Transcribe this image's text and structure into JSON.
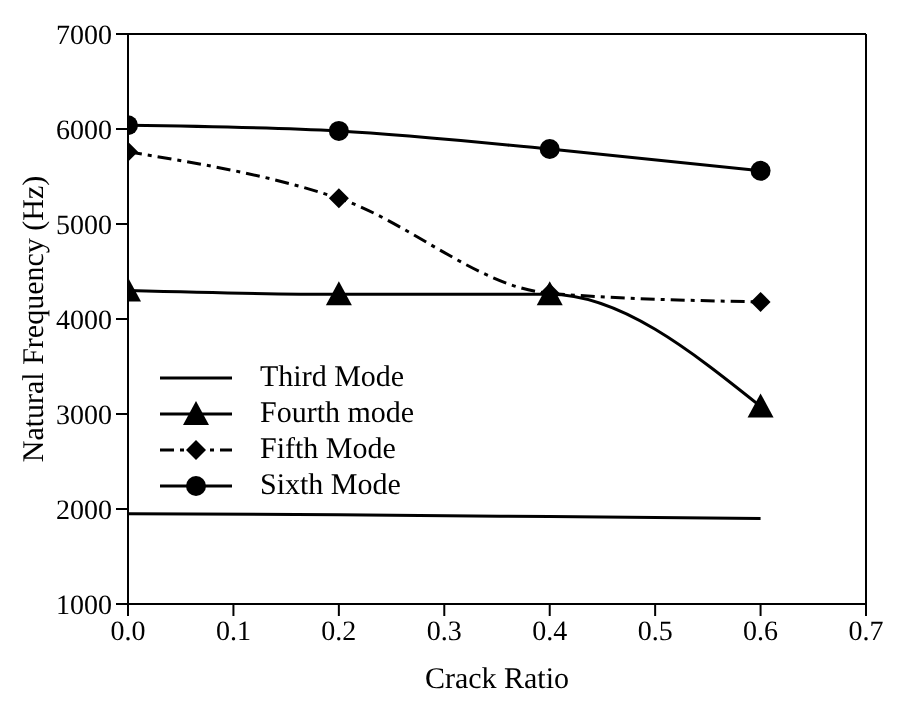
{
  "chart_data": {
    "type": "line",
    "xlabel": "Crack Ratio",
    "ylabel": "Natural Frequency (Hz)",
    "x": [
      0,
      0.2,
      0.4,
      0.6
    ],
    "series": [
      {
        "name": "Third Mode",
        "color": "#000000",
        "values": [
          1950,
          1940,
          1920,
          1900
        ],
        "marker": "none",
        "line_style": "solid"
      },
      {
        "name": "Fourth mode",
        "color": "#000000",
        "values": [
          4300,
          4260,
          4260,
          3080
        ],
        "marker": "triangle",
        "line_style": "solid"
      },
      {
        "name": "Fifth Mode",
        "color": "#000000",
        "values": [
          5760,
          5270,
          4270,
          4180
        ],
        "marker": "diamond",
        "line_style": "dashdot"
      },
      {
        "name": "Sixth Mode",
        "color": "#000000",
        "values": [
          6040,
          5980,
          5790,
          5560
        ],
        "marker": "circle",
        "line_style": "solid"
      }
    ],
    "xlim": [
      0,
      0.7
    ],
    "xticks": [
      {
        "value": 0,
        "label": "0.0"
      },
      {
        "value": 0.1,
        "label": "0.1"
      },
      {
        "value": 0.2,
        "label": "0.2"
      },
      {
        "value": 0.3,
        "label": "0.3"
      },
      {
        "value": 0.4,
        "label": "0.4"
      },
      {
        "value": 0.5,
        "label": "0.5"
      },
      {
        "value": 0.6,
        "label": "0.6"
      },
      {
        "value": 0.7,
        "label": "0.7"
      }
    ],
    "ylim": [
      1000,
      7000
    ],
    "yticks": [
      1000,
      2000,
      3000,
      4000,
      5000,
      6000,
      7000
    ],
    "grid": false,
    "legend": "left"
  }
}
